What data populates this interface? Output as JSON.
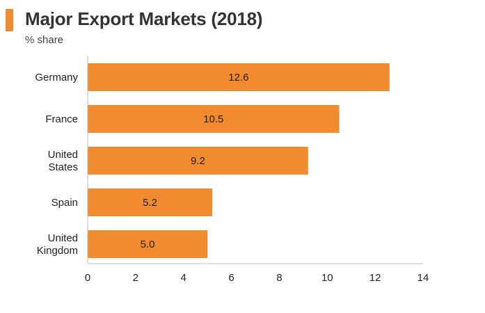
{
  "header": {
    "title": "Major Export Markets (2018)",
    "subtitle": "% share"
  },
  "colors": {
    "accent": "#f08a2e",
    "bar": "#f28a30",
    "axis": "#bbbbbb"
  },
  "chart_data": {
    "type": "bar",
    "orientation": "horizontal",
    "title": "Major Export Markets (2018)",
    "subtitle": "% share",
    "categories": [
      [
        "Germany"
      ],
      [
        "France"
      ],
      [
        "United",
        "States"
      ],
      [
        "Spain"
      ],
      [
        "United",
        "Kingdom"
      ]
    ],
    "values": [
      12.6,
      10.5,
      9.2,
      5.2,
      5.0
    ],
    "data_labels": [
      "12.6",
      "10.5",
      "9.2",
      "5.2",
      "5.0"
    ],
    "xlim": [
      0,
      14
    ],
    "xticks": [
      "0",
      "2",
      "4",
      "6",
      "8",
      "10",
      "12",
      "14"
    ],
    "grid": false,
    "legend": "none"
  }
}
